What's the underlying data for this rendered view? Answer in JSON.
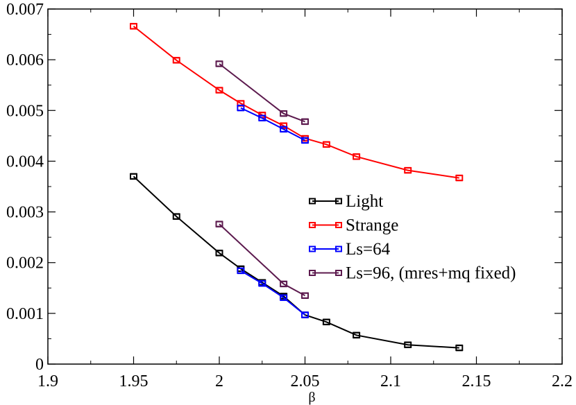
{
  "chart_data": {
    "type": "line",
    "title": "",
    "xlabel": "β",
    "ylabel": "",
    "xlim": [
      1.9,
      2.2
    ],
    "ylim": [
      0,
      0.007
    ],
    "xticks": [
      1.9,
      1.95,
      2.0,
      2.05,
      2.1,
      2.15,
      2.2
    ],
    "xtick_labels": [
      "1.9",
      "1.95",
      "2",
      "2.05",
      "2.1",
      "2.15",
      "2.2"
    ],
    "yticks": [
      0,
      0.001,
      0.002,
      0.003,
      0.004,
      0.005,
      0.006,
      0.007
    ],
    "ytick_labels": [
      "0",
      "0.001",
      "0.002",
      "0.003",
      "0.004",
      "0.005",
      "0.006",
      "0.007"
    ],
    "legend_position": "center-right",
    "series": [
      {
        "name": "Light",
        "color": "#000000",
        "points": [
          [
            1.95,
            0.0037
          ],
          [
            1.975,
            0.00291
          ],
          [
            2.0,
            0.00219
          ],
          [
            2.0125,
            0.00188
          ],
          [
            2.025,
            0.00161
          ],
          [
            2.0375,
            0.00134
          ],
          [
            2.05,
            0.00097
          ],
          [
            2.0625,
            0.00083
          ],
          [
            2.08,
            0.00057
          ],
          [
            2.11,
            0.00038
          ],
          [
            2.14,
            0.00032
          ]
        ]
      },
      {
        "name": "Strange",
        "color": "#ff0000",
        "points": [
          [
            1.95,
            0.00666
          ],
          [
            1.975,
            0.00599
          ],
          [
            2.0,
            0.0054
          ],
          [
            2.0125,
            0.00514
          ],
          [
            2.025,
            0.00491
          ],
          [
            2.0375,
            0.0047
          ],
          [
            2.05,
            0.00445
          ],
          [
            2.0625,
            0.00433
          ],
          [
            2.08,
            0.00409
          ],
          [
            2.11,
            0.00382
          ],
          [
            2.14,
            0.00367
          ]
        ]
      },
      {
        "name": "Ls=64",
        "color": "#0000ff",
        "points": [
          [
            2.0125,
            0.00184
          ],
          [
            2.025,
            0.00159
          ],
          [
            2.0375,
            0.00131
          ],
          [
            2.05,
            0.00097
          ]
        ],
        "points_strange": [
          [
            2.0125,
            0.00505
          ],
          [
            2.025,
            0.00485
          ],
          [
            2.0375,
            0.00463
          ],
          [
            2.05,
            0.00441
          ]
        ]
      },
      {
        "name": "Ls=96, (mres+mq fixed)",
        "color": "#5c1a4e",
        "points": [
          [
            2.0,
            0.00276
          ],
          [
            2.0375,
            0.00158
          ],
          [
            2.05,
            0.00135
          ]
        ],
        "points_strange": [
          [
            2.0,
            0.00592
          ],
          [
            2.0375,
            0.00494
          ],
          [
            2.05,
            0.00478
          ]
        ]
      }
    ]
  }
}
